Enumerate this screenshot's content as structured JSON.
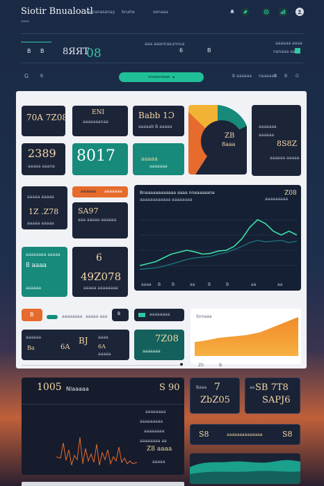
{
  "header": {
    "title": "Siotir Bnualoatl",
    "subtitle": "aaao",
    "nav": [
      "wenanasanay",
      "bnahe",
      "senaaa"
    ]
  },
  "header_icons": [
    "bell-icon",
    "leaf-icon",
    "globe-icon",
    "chart-icon",
    "user-icon"
  ],
  "summary": {
    "left_code": "B",
    "left_code2": "B",
    "headline": "8ЯЯТ",
    "headline_accent": "08",
    "right_label": "aaa aaannasunnua",
    "right_value": "6",
    "right_value2": "B",
    "far_right_label": "aaaaaa aaaa",
    "far_right_label2": "nanaaa aana"
  },
  "toolbar": {
    "left_code": "G",
    "left_small": "B",
    "pill_label": "unaaanaaaa",
    "right_items": [
      "B aaaaaa",
      "naaaaaa",
      "B",
      "B",
      "O"
    ]
  },
  "cards": {
    "c1": {
      "big": "70A 7Z08",
      "small": ""
    },
    "c2": {
      "big": "ENI",
      "small": "aaaaaaanaa"
    },
    "c3": {
      "big": "Babb 1Ɔ",
      "small": "aaaaab B aaaaa"
    },
    "c4": {
      "big": "2389",
      "small": "aaaaa aaana"
    },
    "c5": {
      "big": "8017",
      "small": ""
    },
    "c6": {
      "big": "aaaaa",
      "small": "aaaaaaa"
    },
    "c7_big": "ZB",
    "c7_small": "8aaa",
    "c8": {
      "big": "8S8Z",
      "small1": "aaaaaaa",
      "small2": "aaaaaa",
      "small3": "aaaaaa aaaaa"
    },
    "c9": {
      "label": "aaaaa aaaaa",
      "big": "1Z .Z78",
      "small": "aaaaa aaaaa"
    },
    "c10": {
      "big": "SA97",
      "small": "aaa aaaaa aaaaaa"
    },
    "c11": {
      "label": "aaaaaaaa aaaaa",
      "big": "8 aaaa",
      "small": "aaaaaa"
    },
    "c12": {
      "big": "6",
      "big2": "49Z078",
      "small": "aaaaa aaaaaaaa"
    },
    "orange_tab": "aaaaaa",
    "orange_tab2": "aaaaaaa"
  },
  "main_chart": {
    "title": "Bnaaaaaaaaaaaa aaaa nnaaaaaana",
    "subtitle": "aaaaaaaaaaaa aaaaaaaa",
    "value": "Z08",
    "value_label": "aaaaaaaaa",
    "x_ticks": [
      "aaaa",
      "B",
      "B",
      "aa",
      "B",
      "B",
      "aa",
      "aa"
    ]
  },
  "chart_data": {
    "type": "line",
    "x": [
      0,
      1,
      2,
      3,
      4,
      5,
      6,
      7,
      8,
      9,
      10,
      11,
      12,
      13,
      14,
      15,
      16,
      17,
      18,
      19,
      20
    ],
    "series": [
      {
        "values": [
          4,
          4.5,
          5,
          6,
          7,
          7.5,
          8,
          7.6,
          7,
          7.2,
          7.8,
          8,
          9,
          11,
          14,
          16,
          15,
          13,
          12,
          13,
          12
        ]
      },
      {
        "values": [
          3,
          3.2,
          3.4,
          3.8,
          4.4,
          5,
          5.6,
          6,
          6.2,
          6.4,
          7,
          7.4,
          8.2,
          9,
          10,
          10.6,
          10.2,
          10.4,
          10.6,
          10,
          10.4
        ]
      }
    ],
    "ylim": [
      0,
      20
    ]
  },
  "row2": {
    "orange_label": "B",
    "teal_small": "aaaaaaaa",
    "mid_text": "aaaaa aaa",
    "dark_code": "B",
    "chip": "aaaaaaaa",
    "dark2_label": "aaaaaaaaa aaa",
    "bottom_card1": {
      "l1": "aaaaaa",
      "big": "Ba",
      "small": "aaaa",
      "b2": "6A",
      "big2": "BJ",
      "small2": "6A",
      "val": "aaaaa"
    },
    "teal_big": "7Z08",
    "teal_small2": "aaaaaaa",
    "area_tick1": "Z0",
    "area_tick2": "B",
    "area_label": "Snnaaa"
  },
  "lower_left": {
    "big": "1005",
    "label": "Nlaaaaa",
    "value": "S 90",
    "line1": "aaaaaaaa",
    "line2": "aaaaaaaaa",
    "line3": "aaaaaaaa",
    "line4": "aaaaaaaa aa",
    "bottom_code": "Z8 aaaa",
    "bottom_code2": "aaaaa"
  },
  "lower_right": {
    "r1": {
      "label": "Baaa",
      "big": "7",
      "big2": "ZbZ05"
    },
    "r2": {
      "label": "aa",
      "big": "SB 7T8",
      "big2": "SAPJ6"
    },
    "r3": {
      "left": "S8",
      "mid": "aaaaaaaaaaaaaa",
      "right": "S8"
    }
  }
}
